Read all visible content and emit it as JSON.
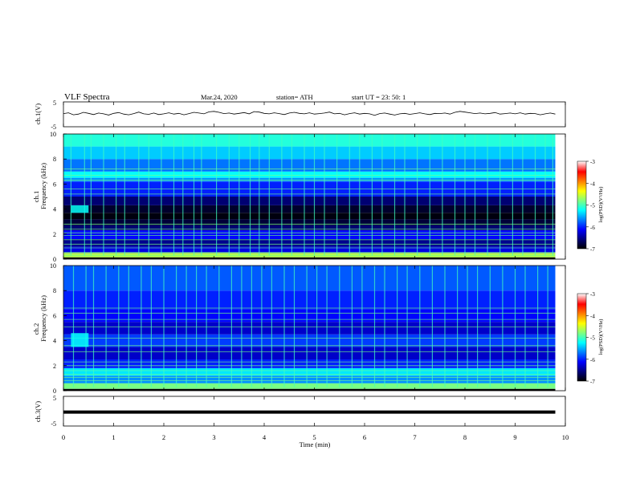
{
  "header": {
    "title": "VLF  Spectra",
    "date": "Mar.24,  2020",
    "station": "station= ATH",
    "start": "start  UT  =    23: 50: 1"
  },
  "x_axis": {
    "label": "Time  (min)",
    "ticks": [
      "0",
      "1",
      "2",
      "3",
      "4",
      "5",
      "6",
      "7",
      "8",
      "9",
      "10"
    ]
  },
  "colorbar_label": "log(PSD)(V²/Hz)",
  "chart_data": [
    {
      "type": "line",
      "name": "ch.1 waveform",
      "ylabel": "ch.1(V)",
      "xlim": [
        0,
        10
      ],
      "ylim": [
        -5,
        5
      ],
      "ytick_labels": [
        "5",
        "-5"
      ],
      "x": [
        0.0,
        0.1,
        0.2,
        0.3,
        0.4,
        0.5,
        0.6,
        0.7,
        0.8,
        0.9,
        1.0,
        1.1,
        1.2,
        1.3,
        1.4,
        1.5,
        1.6,
        1.7,
        1.8,
        1.9,
        2.0,
        2.1,
        2.2,
        2.3,
        2.4,
        2.5,
        2.6,
        2.7,
        2.8,
        2.9,
        3.0,
        3.1,
        3.2,
        3.3,
        3.4,
        3.5,
        3.6,
        3.7,
        3.8,
        3.9,
        4.0,
        4.1,
        4.2,
        4.3,
        4.4,
        4.5,
        4.6,
        4.7,
        4.8,
        4.9,
        5.0,
        5.1,
        5.2,
        5.3,
        5.4,
        5.5,
        5.6,
        5.7,
        5.8,
        5.9,
        6.0,
        6.1,
        6.2,
        6.3,
        6.4,
        6.5,
        6.6,
        6.7,
        6.8,
        6.9,
        7.0,
        7.1,
        7.2,
        7.3,
        7.4,
        7.5,
        7.6,
        7.7,
        7.8,
        7.9,
        8.0,
        8.1,
        8.2,
        8.3,
        8.4,
        8.5,
        8.6,
        8.7,
        8.8,
        8.9,
        9.0,
        9.1,
        9.2,
        9.3,
        9.4,
        9.5,
        9.6,
        9.7,
        9.8
      ],
      "y": [
        0.3,
        0.6,
        -0.2,
        0.1,
        0.8,
        0.4,
        -0.1,
        0.5,
        0.2,
        -0.3,
        0.4,
        0.7,
        0.1,
        -0.2,
        0.3,
        0.9,
        0.2,
        0.0,
        0.5,
        -0.1,
        0.2,
        0.6,
        0.1,
        0.4,
        -0.2,
        0.3,
        0.8,
        0.5,
        0.2,
        1.0,
        1.2,
        0.8,
        0.3,
        0.5,
        0.1,
        0.4,
        0.7,
        0.2,
        1.1,
        0.9,
        0.4,
        0.2,
        0.6,
        0.3,
        -0.1,
        0.5,
        0.8,
        0.4,
        0.2,
        0.6,
        0.1,
        0.3,
        0.5,
        0.9,
        0.2,
        0.4,
        -0.2,
        0.3,
        0.6,
        0.1,
        0.4,
        0.2,
        -0.4,
        0.3,
        0.5,
        0.1,
        -0.3,
        0.2,
        0.4,
        0.0,
        0.3,
        0.6,
        0.2,
        -0.1,
        0.4,
        0.3,
        0.5,
        0.1,
        0.8,
        1.2,
        0.9,
        0.6,
        0.3,
        0.5,
        0.2,
        0.4,
        0.7,
        0.1,
        0.3,
        0.5,
        0.2,
        0.6,
        0.1,
        0.4,
        0.3,
        -0.2,
        0.2,
        0.5,
        0.1
      ]
    },
    {
      "type": "heatmap",
      "name": "ch.1 spectrogram",
      "ylabel_line1": "ch.1",
      "ylabel_line2": "Frequency  (kHz)",
      "xlim": [
        0,
        10
      ],
      "ylim": [
        0,
        10
      ],
      "ytick_labels": [
        "0",
        "2",
        "4",
        "6",
        "8",
        "10"
      ],
      "data_end_min": 9.8,
      "colorbar": {
        "min": -7,
        "max": -3,
        "tick_labels": [
          "-3",
          "-4",
          "-5",
          "-6",
          "-7"
        ]
      },
      "bands": [
        {
          "f0": 0.0,
          "f1": 0.15,
          "level": -7.0
        },
        {
          "f0": 0.15,
          "f1": 0.5,
          "level": -4.6
        },
        {
          "f0": 0.5,
          "f1": 1.0,
          "level": -6.2
        },
        {
          "f0": 1.0,
          "f1": 1.6,
          "level": -6.5
        },
        {
          "f0": 1.6,
          "f1": 2.3,
          "level": -6.1
        },
        {
          "f0": 2.3,
          "f1": 2.7,
          "level": -6.6
        },
        {
          "f0": 2.7,
          "f1": 3.2,
          "level": -6.8
        },
        {
          "f0": 3.2,
          "f1": 3.7,
          "level": -6.95
        },
        {
          "f0": 3.7,
          "f1": 4.3,
          "level": -6.85
        },
        {
          "f0": 4.3,
          "f1": 5.0,
          "level": -6.6
        },
        {
          "f0": 5.0,
          "f1": 6.2,
          "level": -6.0
        },
        {
          "f0": 6.2,
          "f1": 6.5,
          "level": -5.6
        },
        {
          "f0": 6.5,
          "f1": 7.0,
          "level": -5.2
        },
        {
          "f0": 7.0,
          "f1": 8.0,
          "level": -5.7
        },
        {
          "f0": 8.0,
          "f1": 9.0,
          "level": -5.4
        },
        {
          "f0": 9.0,
          "f1": 10.0,
          "level": -5.1
        }
      ],
      "line_freqs": [
        0.3,
        0.55,
        0.9,
        1.2,
        1.55,
        1.9,
        2.1,
        2.4,
        2.8,
        5.2,
        5.6,
        6.3,
        6.7,
        7.2
      ],
      "burst_times": [
        0.15,
        0.42,
        0.55,
        0.8,
        1.05,
        1.22,
        1.5,
        1.7,
        1.95,
        2.2,
        2.38,
        2.6,
        2.75,
        3.05,
        3.3,
        3.5,
        3.72,
        3.9,
        4.1,
        4.35,
        4.55,
        4.8,
        5.0,
        5.2,
        5.45,
        5.7,
        5.9,
        6.15,
        6.35,
        6.6,
        6.8,
        7.05,
        7.3,
        7.55,
        7.8,
        8.0,
        8.2,
        8.45,
        8.7,
        8.95,
        9.15,
        9.4,
        9.6,
        9.75
      ],
      "patches": [
        {
          "t0": 0.15,
          "t1": 0.5,
          "f0": 3.7,
          "f1": 4.3,
          "level": -5.2
        }
      ]
    },
    {
      "type": "heatmap",
      "name": "ch.2 spectrogram",
      "ylabel_line1": "ch.2",
      "ylabel_line2": "Frequency  (kHz)",
      "xlim": [
        0,
        10
      ],
      "ylim": [
        0,
        10
      ],
      "ytick_labels": [
        "0",
        "2",
        "4",
        "6",
        "8",
        "10"
      ],
      "data_end_min": 9.8,
      "colorbar": {
        "min": -7,
        "max": -3,
        "tick_labels": [
          "-3",
          "-4",
          "-5",
          "-6",
          "-7"
        ]
      },
      "bands": [
        {
          "f0": 0.0,
          "f1": 0.15,
          "level": -7.0
        },
        {
          "f0": 0.15,
          "f1": 0.6,
          "level": -4.8
        },
        {
          "f0": 0.6,
          "f1": 1.2,
          "level": -5.6
        },
        {
          "f0": 1.2,
          "f1": 1.8,
          "level": -5.3
        },
        {
          "f0": 1.8,
          "f1": 2.5,
          "level": -6.0
        },
        {
          "f0": 2.5,
          "f1": 3.5,
          "level": -6.3
        },
        {
          "f0": 3.5,
          "f1": 4.5,
          "level": -5.9
        },
        {
          "f0": 4.5,
          "f1": 5.5,
          "level": -6.3
        },
        {
          "f0": 5.5,
          "f1": 6.5,
          "level": -6.1
        },
        {
          "f0": 6.5,
          "f1": 8.0,
          "level": -6.0
        },
        {
          "f0": 8.0,
          "f1": 10.0,
          "level": -5.8
        }
      ],
      "line_freqs": [
        0.4,
        0.8,
        1.05,
        1.3,
        1.6,
        2.0,
        2.3,
        3.1,
        3.6,
        4.2,
        5.1,
        5.7,
        6.2,
        6.6
      ],
      "burst_times": [
        0.2,
        0.45,
        0.6,
        0.85,
        1.1,
        1.3,
        1.55,
        1.75,
        2.0,
        2.25,
        2.45,
        2.65,
        2.85,
        3.1,
        3.35,
        3.55,
        3.75,
        3.95,
        4.15,
        4.4,
        4.6,
        4.85,
        5.05,
        5.25,
        5.5,
        5.75,
        5.95,
        6.2,
        6.4,
        6.65,
        6.85,
        7.1,
        7.35,
        7.6,
        7.85,
        8.05,
        8.25,
        8.5,
        8.75,
        9.0,
        9.2,
        9.45,
        9.65
      ],
      "patches": [
        {
          "t0": 0.15,
          "t1": 0.5,
          "f0": 3.5,
          "f1": 4.6,
          "level": -5.2
        }
      ]
    },
    {
      "type": "line",
      "name": "ch.3 waveform",
      "ylabel": "ch.3(V)",
      "xlim": [
        0,
        10
      ],
      "ylim": [
        -5,
        5
      ],
      "ytick_labels": [
        "5",
        "-5"
      ],
      "x": [
        0.0,
        9.8
      ],
      "y": [
        -0.3,
        -0.3
      ]
    }
  ],
  "colors": {
    "colormap": [
      "#000000",
      "#00007f",
      "#0000ff",
      "#007fff",
      "#00ffff",
      "#7fff7f",
      "#ffff00",
      "#ff7f00",
      "#ff0000",
      "#ffffff"
    ]
  }
}
